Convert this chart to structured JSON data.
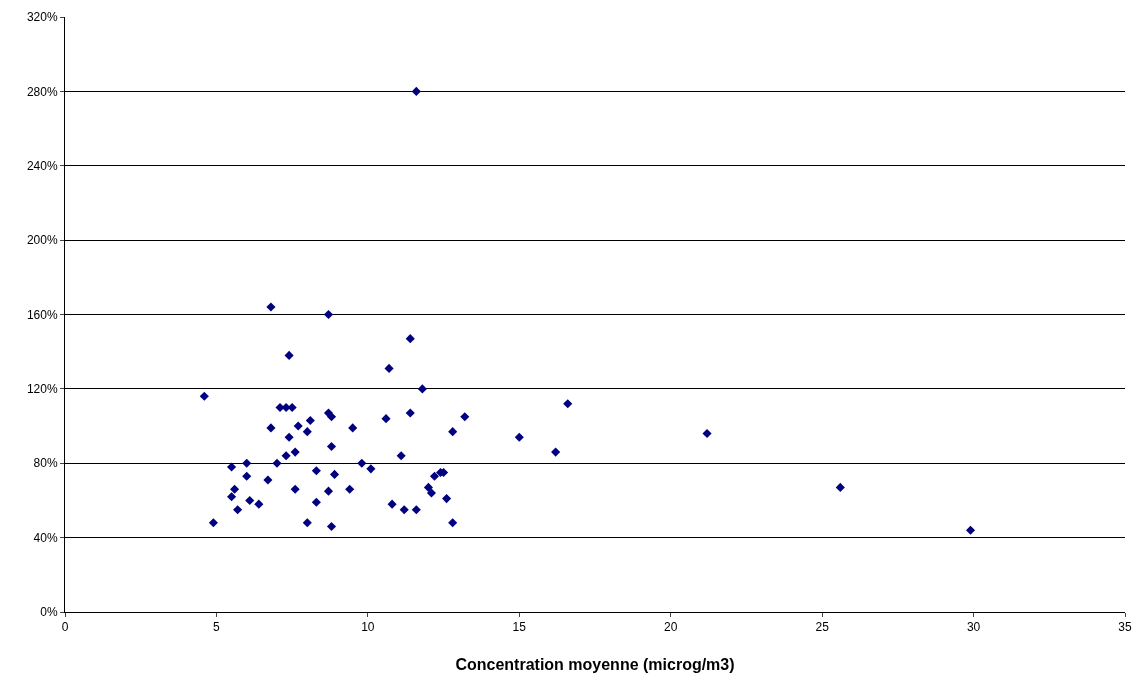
{
  "chart_data": {
    "type": "scatter",
    "xlabel": "Concentration moyenne (microg/m3)",
    "x": [
      4.6,
      4.9,
      5.5,
      5.5,
      5.6,
      5.7,
      6.0,
      6.0,
      6.1,
      6.4,
      6.7,
      6.8,
      6.8,
      7.0,
      7.1,
      7.3,
      7.5,
      7.4,
      7.4,
      7.3,
      7.6,
      7.6,
      7.7,
      8.0,
      8.1,
      8.0,
      8.3,
      8.3,
      8.7,
      8.7,
      8.8,
      8.8,
      8.7,
      8.8,
      8.9,
      9.4,
      9.5,
      9.8,
      10.1,
      10.6,
      10.7,
      10.8,
      11.1,
      11.2,
      11.4,
      11.4,
      11.6,
      11.6,
      11.8,
      12.2,
      12.0,
      12.1,
      12.4,
      12.5,
      12.6,
      12.8,
      12.8,
      13.2,
      15.0,
      16.2,
      16.6,
      21.2,
      25.6,
      29.9
    ],
    "values": [
      116,
      48,
      78,
      62,
      66,
      55,
      80,
      73,
      60,
      58,
      71,
      164,
      99,
      80,
      110,
      110,
      110,
      138,
      94,
      84,
      86,
      66,
      100,
      97,
      103,
      48,
      76,
      59,
      160,
      107,
      105,
      89,
      65,
      46,
      74,
      66,
      99,
      80,
      77,
      104,
      131,
      58,
      84,
      55,
      147,
      107,
      280,
      55,
      120,
      73,
      67,
      64,
      75,
      75,
      61,
      48,
      97,
      105,
      94,
      86,
      112,
      96,
      67,
      44
    ],
    "color": "#000080",
    "marker": "diamond",
    "xlim": [
      0,
      35
    ],
    "xticks": [
      0,
      5,
      10,
      15,
      20,
      25,
      30,
      35
    ],
    "ylim": [
      0,
      320
    ],
    "yticks": [
      {
        "value": 0,
        "label": "0%"
      },
      {
        "value": 40,
        "label": "40%"
      },
      {
        "value": 80,
        "label": "80%"
      },
      {
        "value": 120,
        "label": "120%"
      },
      {
        "value": 160,
        "label": "160%"
      },
      {
        "value": 200,
        "label": "200%"
      },
      {
        "value": 240,
        "label": "240%"
      },
      {
        "value": 280,
        "label": "280%"
      },
      {
        "value": 320,
        "label": "320%"
      }
    ],
    "grid": "y"
  }
}
